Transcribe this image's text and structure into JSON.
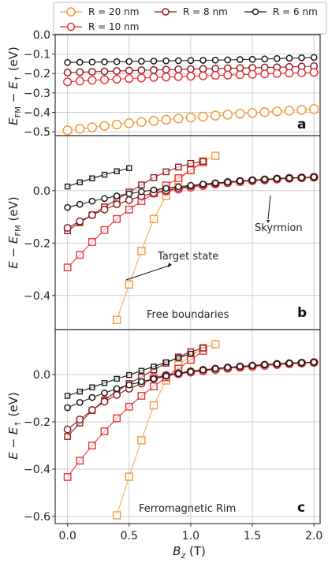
{
  "colors": {
    "r20": "#f39a3c",
    "r10": "#e8343a",
    "r8": "#8e1b22",
    "r6": "#1a1a1a",
    "grid": "#cfcfcf",
    "frame": "#333333"
  },
  "legend": [
    {
      "key": "r20",
      "label": "R = 20 nm"
    },
    {
      "key": "r8",
      "label": "R = 8 nm"
    },
    {
      "key": "r6",
      "label": "R = 6 nm"
    },
    {
      "key": "r10",
      "label": "R = 10 nm"
    }
  ],
  "xlabel": "B_z (T)",
  "chart_data": [
    {
      "type": "line",
      "panel": "a",
      "ylabel": "E_FM − E_↑ (eV)",
      "xlim": [
        -0.1,
        2.05
      ],
      "ylim": [
        -0.52,
        0.0
      ],
      "yticks": [
        "0.0",
        "−0.1",
        "−0.2",
        "−0.3",
        "−0.4",
        "−0.5"
      ],
      "ytick_values": [
        0.0,
        -0.1,
        -0.2,
        -0.3,
        -0.4,
        -0.5
      ],
      "series": [
        {
          "key": "r6",
          "marker": "circle",
          "x": [
            0.0,
            0.1,
            0.2,
            0.3,
            0.4,
            0.5,
            0.6,
            0.7,
            0.8,
            0.9,
            1.0,
            1.1,
            1.2,
            1.3,
            1.4,
            1.5,
            1.6,
            1.7,
            1.8,
            1.9,
            2.0
          ],
          "y": [
            -0.143,
            -0.142,
            -0.141,
            -0.14,
            -0.139,
            -0.138,
            -0.137,
            -0.136,
            -0.135,
            -0.134,
            -0.133,
            -0.132,
            -0.131,
            -0.13,
            -0.128,
            -0.127,
            -0.125,
            -0.123,
            -0.121,
            -0.119,
            -0.117
          ]
        },
        {
          "key": "r8",
          "marker": "circle",
          "x": [
            0.0,
            0.1,
            0.2,
            0.3,
            0.4,
            0.5,
            0.6,
            0.7,
            0.8,
            0.9,
            1.0,
            1.1,
            1.2,
            1.3,
            1.4,
            1.5,
            1.6,
            1.7,
            1.8,
            1.9,
            2.0
          ],
          "y": [
            -0.195,
            -0.193,
            -0.191,
            -0.189,
            -0.187,
            -0.185,
            -0.183,
            -0.182,
            -0.18,
            -0.179,
            -0.177,
            -0.176,
            -0.175,
            -0.173,
            -0.172,
            -0.171,
            -0.169,
            -0.168,
            -0.166,
            -0.164,
            -0.162
          ]
        },
        {
          "key": "r10",
          "marker": "circle",
          "x": [
            0.0,
            0.1,
            0.2,
            0.3,
            0.4,
            0.5,
            0.6,
            0.7,
            0.8,
            0.9,
            1.0,
            1.1,
            1.2,
            1.3,
            1.4,
            1.5,
            1.6,
            1.7,
            1.8,
            1.9,
            2.0
          ],
          "y": [
            -0.243,
            -0.239,
            -0.235,
            -0.232,
            -0.229,
            -0.226,
            -0.223,
            -0.22,
            -0.218,
            -0.216,
            -0.214,
            -0.212,
            -0.21,
            -0.208,
            -0.206,
            -0.204,
            -0.202,
            -0.2,
            -0.198,
            -0.196,
            -0.194
          ]
        },
        {
          "key": "r20",
          "marker": "circle",
          "x": [
            0.0,
            0.1,
            0.2,
            0.3,
            0.4,
            0.5,
            0.6,
            0.7,
            0.8,
            0.9,
            1.0,
            1.1,
            1.2,
            1.3,
            1.4,
            1.5,
            1.6,
            1.7,
            1.8,
            1.9,
            2.0
          ],
          "y": [
            -0.493,
            -0.485,
            -0.477,
            -0.47,
            -0.463,
            -0.456,
            -0.45,
            -0.444,
            -0.438,
            -0.432,
            -0.427,
            -0.422,
            -0.417,
            -0.412,
            -0.407,
            -0.403,
            -0.399,
            -0.395,
            -0.391,
            -0.387,
            -0.383
          ]
        }
      ]
    },
    {
      "type": "line",
      "panel": "b",
      "ylabel": "E − E_FM (eV)",
      "xlim": [
        -0.1,
        2.05
      ],
      "ylim": [
        -0.53,
        0.21
      ],
      "yticks": [
        "0.0",
        "−0.2",
        "−0.4"
      ],
      "ytick_values": [
        0.0,
        -0.2,
        -0.4
      ],
      "annotations": [
        "Skyrmion",
        "Target state",
        "Free boundaries"
      ],
      "series": [
        {
          "key": "r20",
          "marker": "square",
          "x": [
            0.4,
            0.5,
            0.6,
            0.7,
            0.8,
            0.9,
            1.0,
            1.1,
            1.2
          ],
          "y": [
            -0.493,
            -0.358,
            -0.23,
            -0.108,
            -0.02,
            0.04,
            0.08,
            0.112,
            0.133
          ]
        },
        {
          "key": "r10",
          "marker": "square",
          "x": [
            0.0,
            0.1,
            0.2,
            0.3,
            0.4,
            0.5,
            0.6,
            0.7,
            0.8,
            0.9,
            1.0,
            1.1
          ],
          "y": [
            -0.293,
            -0.245,
            -0.196,
            -0.15,
            -0.108,
            -0.072,
            -0.04,
            -0.01,
            0.02,
            0.048,
            0.078,
            0.108
          ]
        },
        {
          "key": "r8",
          "marker": "square",
          "x": [
            0.0,
            0.1,
            0.2,
            0.3,
            0.4,
            0.5,
            0.6,
            0.7,
            0.8,
            0.9,
            1.0,
            1.1
          ],
          "y": [
            -0.153,
            -0.122,
            -0.092,
            -0.062,
            -0.034,
            -0.005,
            0.022,
            0.05,
            0.072,
            0.09,
            0.104,
            0.112
          ]
        },
        {
          "key": "r6",
          "marker": "square",
          "x": [
            0.0,
            0.1,
            0.2,
            0.3,
            0.4,
            0.5
          ],
          "y": [
            0.016,
            0.032,
            0.047,
            0.061,
            0.074,
            0.086
          ]
        },
        {
          "key": "r10",
          "marker": "circle",
          "x": [
            0.7,
            0.8,
            0.9,
            1.0,
            1.1,
            1.2,
            1.3,
            1.4,
            1.5,
            1.6,
            1.7,
            1.8,
            1.9,
            2.0
          ],
          "y": [
            -0.01,
            -0.002,
            0.006,
            0.013,
            0.019,
            0.025,
            0.03,
            0.034,
            0.038,
            0.041,
            0.044,
            0.047,
            0.049,
            0.051
          ]
        },
        {
          "key": "r8",
          "marker": "circle",
          "x": [
            0.0,
            0.1,
            0.2,
            0.3,
            0.4,
            0.5,
            0.6,
            0.7,
            0.8,
            0.9,
            1.0,
            1.1,
            1.2,
            1.3,
            1.4,
            1.5,
            1.6,
            1.7,
            1.8,
            1.9,
            2.0
          ],
          "y": [
            -0.142,
            -0.117,
            -0.093,
            -0.072,
            -0.052,
            -0.036,
            -0.021,
            -0.009,
            0.001,
            0.01,
            0.017,
            0.023,
            0.028,
            0.033,
            0.037,
            0.04,
            0.043,
            0.046,
            0.048,
            0.05,
            0.052
          ]
        },
        {
          "key": "r6",
          "marker": "circle",
          "x": [
            0.0,
            0.1,
            0.2,
            0.3,
            0.4,
            0.5,
            0.6,
            0.7,
            0.8,
            0.9,
            1.0,
            1.1,
            1.2,
            1.3,
            1.4,
            1.5,
            1.6,
            1.7,
            1.8,
            1.9,
            2.0
          ],
          "y": [
            -0.064,
            -0.052,
            -0.04,
            -0.03,
            -0.02,
            -0.012,
            -0.004,
            0.003,
            0.009,
            0.015,
            0.02,
            0.025,
            0.029,
            0.033,
            0.037,
            0.04,
            0.043,
            0.046,
            0.048,
            0.05,
            0.052
          ]
        }
      ]
    },
    {
      "type": "line",
      "panel": "c",
      "ylabel": "E − E_↑ (eV)",
      "xlim": [
        -0.1,
        2.05
      ],
      "ylim": [
        -0.63,
        0.19
      ],
      "yticks": [
        "0.0",
        "−0.2",
        "−0.4",
        "−0.6"
      ],
      "ytick_values": [
        0.0,
        -0.2,
        -0.4,
        -0.6
      ],
      "annotations": [
        "Ferromagnetic Rim"
      ],
      "series": [
        {
          "key": "r20",
          "marker": "square",
          "x": [
            0.4,
            0.5,
            0.6,
            0.7,
            0.8,
            0.9,
            1.0,
            1.1,
            1.2
          ],
          "y": [
            -0.595,
            -0.432,
            -0.278,
            -0.13,
            -0.025,
            0.04,
            0.08,
            0.112,
            0.128
          ]
        },
        {
          "key": "r10",
          "marker": "square",
          "x": [
            0.0,
            0.1,
            0.2,
            0.3,
            0.4,
            0.5,
            0.6,
            0.7,
            0.8,
            0.9,
            1.0,
            1.1
          ],
          "y": [
            -0.433,
            -0.364,
            -0.3,
            -0.24,
            -0.185,
            -0.136,
            -0.09,
            -0.05,
            -0.012,
            0.025,
            0.062,
            0.1
          ]
        },
        {
          "key": "r8",
          "marker": "square",
          "x": [
            0.0,
            0.1,
            0.2,
            0.3,
            0.4,
            0.5,
            0.6,
            0.7,
            0.8,
            0.9,
            1.0,
            1.1
          ],
          "y": [
            -0.262,
            -0.205,
            -0.152,
            -0.108,
            -0.07,
            -0.038,
            -0.01,
            0.02,
            0.048,
            0.074,
            0.096,
            0.112
          ]
        },
        {
          "key": "r6",
          "marker": "square",
          "x": [
            0.0,
            0.1,
            0.2,
            0.3,
            0.4,
            0.5,
            0.6,
            0.7,
            0.8,
            0.9,
            1.0
          ],
          "y": [
            -0.09,
            -0.072,
            -0.054,
            -0.036,
            -0.018,
            -0.002,
            0.016,
            0.034,
            0.052,
            0.07,
            0.088
          ]
        },
        {
          "key": "r10",
          "marker": "circle",
          "x": [
            0.7,
            0.8,
            0.9,
            1.0,
            1.1,
            1.2,
            1.3,
            1.4,
            1.5,
            1.6,
            1.7,
            1.8,
            1.9,
            2.0
          ],
          "y": [
            -0.012,
            -0.004,
            0.003,
            0.01,
            0.016,
            0.021,
            0.026,
            0.03,
            0.034,
            0.038,
            0.042,
            0.045,
            0.048,
            0.051
          ]
        },
        {
          "key": "r8",
          "marker": "circle",
          "x": [
            0.0,
            0.1,
            0.2,
            0.3,
            0.4,
            0.5,
            0.6,
            0.7,
            0.8,
            0.9,
            1.0,
            1.1,
            1.2,
            1.3,
            1.4,
            1.5,
            1.6,
            1.7,
            1.8,
            1.9,
            2.0
          ],
          "y": [
            -0.232,
            -0.19,
            -0.15,
            -0.115,
            -0.086,
            -0.06,
            -0.038,
            -0.018,
            -0.004,
            0.006,
            0.014,
            0.02,
            0.025,
            0.03,
            0.034,
            0.038,
            0.042,
            0.045,
            0.048,
            0.05,
            0.052
          ]
        },
        {
          "key": "r6",
          "marker": "circle",
          "x": [
            0.0,
            0.1,
            0.2,
            0.3,
            0.4,
            0.5,
            0.6,
            0.7,
            0.8,
            0.9,
            1.0,
            1.1,
            1.2,
            1.3,
            1.4,
            1.5,
            1.6,
            1.7,
            1.8,
            1.9,
            2.0
          ],
          "y": [
            -0.14,
            -0.118,
            -0.097,
            -0.078,
            -0.06,
            -0.044,
            -0.03,
            -0.018,
            -0.006,
            0.004,
            0.012,
            0.019,
            0.025,
            0.03,
            0.034,
            0.038,
            0.042,
            0.045,
            0.048,
            0.05,
            0.052
          ]
        }
      ]
    }
  ]
}
